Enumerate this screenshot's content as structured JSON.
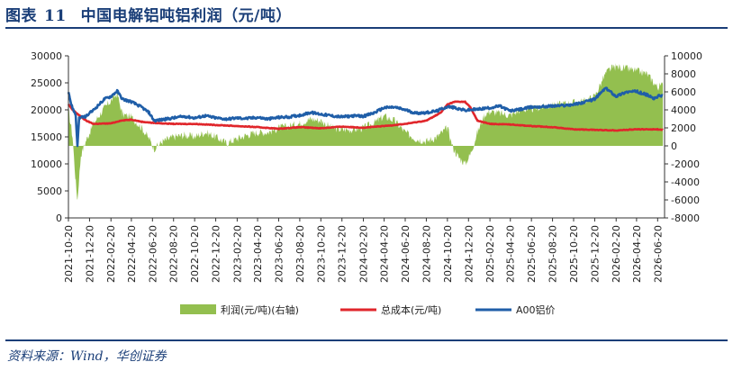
{
  "header": {
    "figure_label": "图表",
    "figure_number": "11",
    "title": "中国电解铝吨铝利润（元/吨）"
  },
  "source": "资料来源：Wind，华创证券",
  "chart_data": {
    "type": "line",
    "title": "中国电解铝吨铝利润（元/吨）",
    "xlabel": "",
    "ylabel": "",
    "x_tick_labels": [
      "2021-10-20",
      "2021-12-20",
      "2022-02-20",
      "2022-04-20",
      "2022-06-20",
      "2022-08-20",
      "2022-10-20",
      "2022-12-20",
      "2023-02-20",
      "2023-04-20",
      "2023-06-20",
      "2023-08-20",
      "2023-10-20",
      "2023-12-20",
      "2024-02-20",
      "2024-04-20",
      "2024-06-20",
      "2024-08-20",
      "2024-10-20",
      "2024-12-20",
      "2025-02-20",
      "2025-04-20",
      "2025-06-20",
      "2025-08-20",
      "2025-10-20",
      "2025-12-20",
      "2026-02-20",
      "2026-04-20",
      "2026-06-20"
    ],
    "y_left": {
      "ticks": [
        "0",
        "5000",
        "10000",
        "15000",
        "20000",
        "25000",
        "30000"
      ],
      "ylim": [
        0,
        30000
      ]
    },
    "y_right": {
      "ticks": [
        "-8000",
        "-6000",
        "-4000",
        "-2000",
        "0",
        "2000",
        "4000",
        "6000",
        "8000",
        "10000"
      ],
      "ylim": [
        -8000,
        10000
      ]
    },
    "legend_position": "bottom",
    "grid": false,
    "series": [
      {
        "name": "利润(元/吨)(右轴)",
        "type": "area",
        "axis": "right",
        "color": "#93bf4f",
        "points": [
          [
            "2021-10-20",
            4000
          ],
          [
            "2021-11-01",
            1000
          ],
          [
            "2021-11-10",
            -4000
          ],
          [
            "2021-11-15",
            -6000
          ],
          [
            "2021-11-25",
            -1000
          ],
          [
            "2021-12-10",
            600
          ],
          [
            "2022-01-01",
            2500
          ],
          [
            "2022-02-01",
            4200
          ],
          [
            "2022-02-20",
            5000
          ],
          [
            "2022-03-10",
            5800
          ],
          [
            "2022-03-25",
            3500
          ],
          [
            "2022-04-20",
            3200
          ],
          [
            "2022-05-20",
            2000
          ],
          [
            "2022-06-10",
            800
          ],
          [
            "2022-06-25",
            -300
          ],
          [
            "2022-07-20",
            500
          ],
          [
            "2022-08-20",
            1000
          ],
          [
            "2022-09-20",
            1200
          ],
          [
            "2022-10-20",
            1000
          ],
          [
            "2022-11-20",
            1500
          ],
          [
            "2022-12-20",
            1000
          ],
          [
            "2023-01-20",
            300
          ],
          [
            "2023-02-20",
            800
          ],
          [
            "2023-03-20",
            1200
          ],
          [
            "2023-04-20",
            1500
          ],
          [
            "2023-05-20",
            1500
          ],
          [
            "2023-06-20",
            2000
          ],
          [
            "2023-07-20",
            2200
          ],
          [
            "2023-08-20",
            2500
          ],
          [
            "2023-09-20",
            3000
          ],
          [
            "2023-10-20",
            2800
          ],
          [
            "2023-11-20",
            2000
          ],
          [
            "2023-12-20",
            1800
          ],
          [
            "2024-01-20",
            1800
          ],
          [
            "2024-02-20",
            2000
          ],
          [
            "2024-03-20",
            2500
          ],
          [
            "2024-04-20",
            3300
          ],
          [
            "2024-05-20",
            2800
          ],
          [
            "2024-06-20",
            1500
          ],
          [
            "2024-07-20",
            800
          ],
          [
            "2024-08-20",
            500
          ],
          [
            "2024-09-20",
            1000
          ],
          [
            "2024-10-20",
            2000
          ],
          [
            "2024-11-05",
            -200
          ],
          [
            "2024-11-20",
            -1200
          ],
          [
            "2024-12-10",
            -2000
          ],
          [
            "2024-12-25",
            -1000
          ],
          [
            "2025-01-15",
            1500
          ],
          [
            "2025-02-05",
            3500
          ],
          [
            "2025-02-20",
            3800
          ],
          [
            "2025-03-20",
            3600
          ],
          [
            "2025-04-20",
            3400
          ],
          [
            "2025-05-20",
            4000
          ],
          [
            "2025-06-20",
            4100
          ],
          [
            "2025-07-20",
            4300
          ],
          [
            "2025-08-20",
            4500
          ],
          [
            "2025-09-20",
            4700
          ],
          [
            "2025-10-20",
            4800
          ],
          [
            "2025-11-20",
            5000
          ],
          [
            "2025-12-20",
            5500
          ],
          [
            "2026-01-20",
            8000
          ],
          [
            "2026-02-01",
            8500
          ],
          [
            "2026-02-20",
            8800
          ],
          [
            "2026-03-20",
            8600
          ],
          [
            "2026-04-20",
            8300
          ],
          [
            "2026-05-20",
            8000
          ],
          [
            "2026-06-20",
            6500
          ],
          [
            "2026-07-05",
            6800
          ]
        ]
      },
      {
        "name": "总成本(元/吨)",
        "type": "line",
        "axis": "left",
        "color": "#e0262b",
        "points": [
          [
            "2021-10-20",
            21000
          ],
          [
            "2021-11-01",
            20000
          ],
          [
            "2021-11-20",
            19000
          ],
          [
            "2021-12-10",
            18000
          ],
          [
            "2022-01-01",
            17400
          ],
          [
            "2022-02-20",
            17500
          ],
          [
            "2022-03-20",
            18000
          ],
          [
            "2022-04-20",
            18200
          ],
          [
            "2022-05-20",
            17800
          ],
          [
            "2022-06-20",
            17600
          ],
          [
            "2022-08-20",
            17400
          ],
          [
            "2022-10-20",
            17400
          ],
          [
            "2022-12-20",
            17200
          ],
          [
            "2023-02-20",
            17000
          ],
          [
            "2023-04-20",
            16800
          ],
          [
            "2023-06-20",
            16500
          ],
          [
            "2023-08-20",
            16800
          ],
          [
            "2023-10-20",
            16600
          ],
          [
            "2023-12-20",
            16900
          ],
          [
            "2024-02-20",
            16700
          ],
          [
            "2024-04-20",
            17000
          ],
          [
            "2024-06-20",
            17400
          ],
          [
            "2024-08-20",
            18000
          ],
          [
            "2024-10-01",
            19500
          ],
          [
            "2024-10-20",
            21000
          ],
          [
            "2024-11-10",
            21500
          ],
          [
            "2024-12-10",
            21500
          ],
          [
            "2024-12-25",
            20500
          ],
          [
            "2025-01-15",
            18000
          ],
          [
            "2025-02-20",
            17400
          ],
          [
            "2025-04-20",
            17300
          ],
          [
            "2025-06-20",
            17000
          ],
          [
            "2025-08-20",
            16800
          ],
          [
            "2025-10-20",
            16400
          ],
          [
            "2025-12-20",
            16300
          ],
          [
            "2026-02-20",
            16200
          ],
          [
            "2026-04-20",
            16400
          ],
          [
            "2026-06-20",
            16400
          ],
          [
            "2026-07-05",
            16300
          ]
        ]
      },
      {
        "name": "A00铝价",
        "type": "line",
        "axis": "left",
        "color": "#1f5ea8",
        "points": [
          [
            "2021-10-20",
            23500
          ],
          [
            "2021-10-28",
            21000
          ],
          [
            "2021-11-10",
            19000
          ],
          [
            "2021-11-15",
            13500
          ],
          [
            "2021-11-20",
            18500
          ],
          [
            "2021-12-10",
            18800
          ],
          [
            "2022-01-01",
            20000
          ],
          [
            "2022-02-01",
            22000
          ],
          [
            "2022-02-20",
            22500
          ],
          [
            "2022-03-10",
            23500
          ],
          [
            "2022-03-25",
            22000
          ],
          [
            "2022-04-20",
            21500
          ],
          [
            "2022-05-20",
            20500
          ],
          [
            "2022-06-10",
            19500
          ],
          [
            "2022-06-25",
            18000
          ],
          [
            "2022-07-20",
            18200
          ],
          [
            "2022-08-20",
            18500
          ],
          [
            "2022-09-20",
            18800
          ],
          [
            "2022-10-20",
            18500
          ],
          [
            "2022-11-20",
            18900
          ],
          [
            "2022-12-20",
            18500
          ],
          [
            "2023-01-20",
            18300
          ],
          [
            "2023-02-20",
            18500
          ],
          [
            "2023-03-20",
            18400
          ],
          [
            "2023-04-20",
            18600
          ],
          [
            "2023-05-20",
            18300
          ],
          [
            "2023-06-20",
            18600
          ],
          [
            "2023-07-20",
            18700
          ],
          [
            "2023-08-20",
            19000
          ],
          [
            "2023-09-20",
            19500
          ],
          [
            "2023-10-20",
            19200
          ],
          [
            "2023-11-20",
            18900
          ],
          [
            "2023-12-20",
            18700
          ],
          [
            "2024-01-20",
            18900
          ],
          [
            "2024-02-20",
            18800
          ],
          [
            "2024-03-20",
            19400
          ],
          [
            "2024-04-20",
            20400
          ],
          [
            "2024-05-20",
            20500
          ],
          [
            "2024-06-20",
            20000
          ],
          [
            "2024-07-20",
            19400
          ],
          [
            "2024-08-20",
            19500
          ],
          [
            "2024-09-20",
            19800
          ],
          [
            "2024-10-20",
            20600
          ],
          [
            "2024-11-10",
            20400
          ],
          [
            "2024-12-10",
            19900
          ],
          [
            "2024-12-25",
            20000
          ],
          [
            "2025-01-15",
            20100
          ],
          [
            "2025-02-20",
            20400
          ],
          [
            "2025-03-20",
            20700
          ],
          [
            "2025-04-20",
            19800
          ],
          [
            "2025-05-20",
            20100
          ],
          [
            "2025-06-20",
            20500
          ],
          [
            "2025-07-20",
            20600
          ],
          [
            "2025-08-20",
            20700
          ],
          [
            "2025-09-20",
            20800
          ],
          [
            "2025-10-20",
            21000
          ],
          [
            "2025-11-20",
            21400
          ],
          [
            "2025-12-20",
            22000
          ],
          [
            "2026-01-20",
            24000
          ],
          [
            "2026-02-01",
            23500
          ],
          [
            "2026-02-20",
            22500
          ],
          [
            "2026-03-20",
            23300
          ],
          [
            "2026-04-20",
            23400
          ],
          [
            "2026-05-20",
            22800
          ],
          [
            "2026-06-10",
            22000
          ],
          [
            "2026-06-20",
            22500
          ],
          [
            "2026-07-05",
            22700
          ]
        ]
      }
    ]
  }
}
